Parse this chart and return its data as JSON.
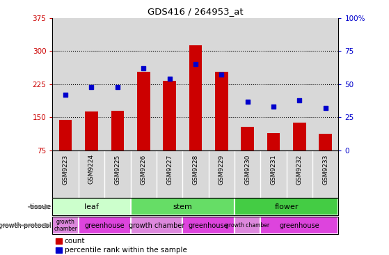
{
  "title": "GDS416 / 264953_at",
  "samples": [
    "GSM9223",
    "GSM9224",
    "GSM9225",
    "GSM9226",
    "GSM9227",
    "GSM9228",
    "GSM9229",
    "GSM9230",
    "GSM9231",
    "GSM9232",
    "GSM9233"
  ],
  "counts": [
    145,
    163,
    165,
    253,
    232,
    313,
    253,
    128,
    115,
    138,
    113
  ],
  "percentiles": [
    42,
    48,
    48,
    62,
    54,
    65,
    57,
    37,
    33,
    38,
    32
  ],
  "ylim_left": [
    75,
    375
  ],
  "ylim_right": [
    0,
    100
  ],
  "yticks_left": [
    75,
    150,
    225,
    300,
    375
  ],
  "yticks_right": [
    0,
    25,
    50,
    75,
    100
  ],
  "bar_color": "#cc0000",
  "scatter_color": "#0000cc",
  "tissue_groups": [
    {
      "label": "leaf",
      "start": 0,
      "end": 3,
      "color": "#ccffcc"
    },
    {
      "label": "stem",
      "start": 3,
      "end": 7,
      "color": "#66dd66"
    },
    {
      "label": "flower",
      "start": 7,
      "end": 11,
      "color": "#44cc44"
    }
  ],
  "protocol_groups": [
    {
      "label": "growth\nchamber",
      "start": 0,
      "end": 1,
      "color": "#dd88dd"
    },
    {
      "label": "greenhouse",
      "start": 1,
      "end": 3,
      "color": "#dd44dd"
    },
    {
      "label": "growth chamber",
      "start": 3,
      "end": 5,
      "color": "#dd88dd"
    },
    {
      "label": "greenhouse",
      "start": 5,
      "end": 7,
      "color": "#dd44dd"
    },
    {
      "label": "growth chamber",
      "start": 7,
      "end": 8,
      "color": "#dd88dd"
    },
    {
      "label": "greenhouse",
      "start": 8,
      "end": 11,
      "color": "#dd44dd"
    }
  ],
  "tick_color_left": "#cc0000",
  "tick_color_right": "#0000cc",
  "col_bg_color": "#d8d8d8",
  "plot_bg_color": "#ffffff",
  "grid_color": "#000000"
}
